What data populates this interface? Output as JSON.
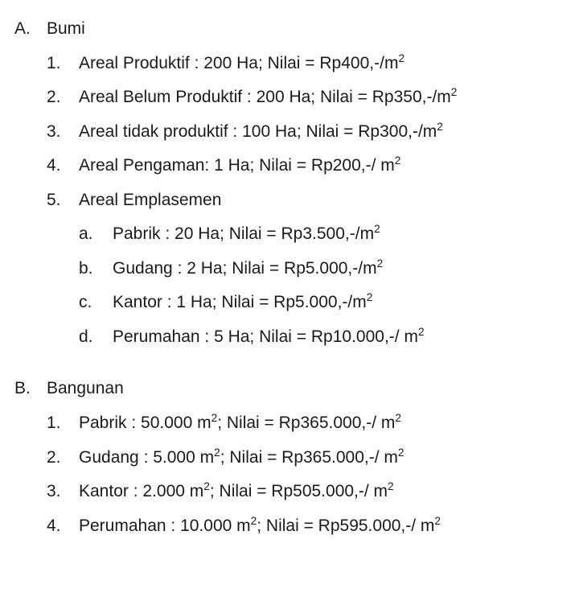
{
  "sections": [
    {
      "marker": "A.",
      "title": "Bumi",
      "items": [
        {
          "marker": "1.",
          "html": "Areal Produktif : 200 Ha; Nilai = Rp400,-/m<sup>2</sup>"
        },
        {
          "marker": "2.",
          "html": "Areal Belum Produktif : 200 Ha; Nilai = Rp350,-/m<sup>2</sup>"
        },
        {
          "marker": "3.",
          "html": "Areal tidak produktif : 100 Ha; Nilai = Rp300,-/m<sup>2</sup>"
        },
        {
          "marker": "4.",
          "html": "Areal Pengaman: 1 Ha; Nilai = Rp200,-/ m<sup>2</sup>"
        },
        {
          "marker": "5.",
          "html": "Areal Emplasemen",
          "subitems": [
            {
              "marker": "a.",
              "html": "Pabrik : 20 Ha; Nilai = Rp3.500,-/m<sup>2</sup>"
            },
            {
              "marker": "b.",
              "html": "Gudang : 2 Ha; Nilai = Rp5.000,-/m<sup>2</sup>"
            },
            {
              "marker": "c.",
              "html": "Kantor : 1 Ha; Nilai = Rp5.000,-/m<sup>2</sup>"
            },
            {
              "marker": "d.",
              "html": "Perumahan : 5 Ha; Nilai = Rp10.000,-/ m<sup>2</sup>"
            }
          ]
        }
      ]
    },
    {
      "marker": "B.",
      "title": "Bangunan",
      "items": [
        {
          "marker": "1.",
          "html": "Pabrik : 50.000 m<sup>2</sup>; Nilai = Rp365.000,-/ m<sup>2</sup>"
        },
        {
          "marker": "2.",
          "html": "Gudang : 5.000 m<sup>2</sup>; Nilai = Rp365.000,-/ m<sup>2</sup>"
        },
        {
          "marker": "3.",
          "html": "Kantor : 2.000 m<sup>2</sup>; Nilai = Rp505.000,-/ m<sup>2</sup>"
        },
        {
          "marker": "4.",
          "html": "Perumahan : 10.000 m<sup>2</sup>; Nilai = Rp595.000,-/ m<sup>2</sup>"
        }
      ]
    }
  ]
}
